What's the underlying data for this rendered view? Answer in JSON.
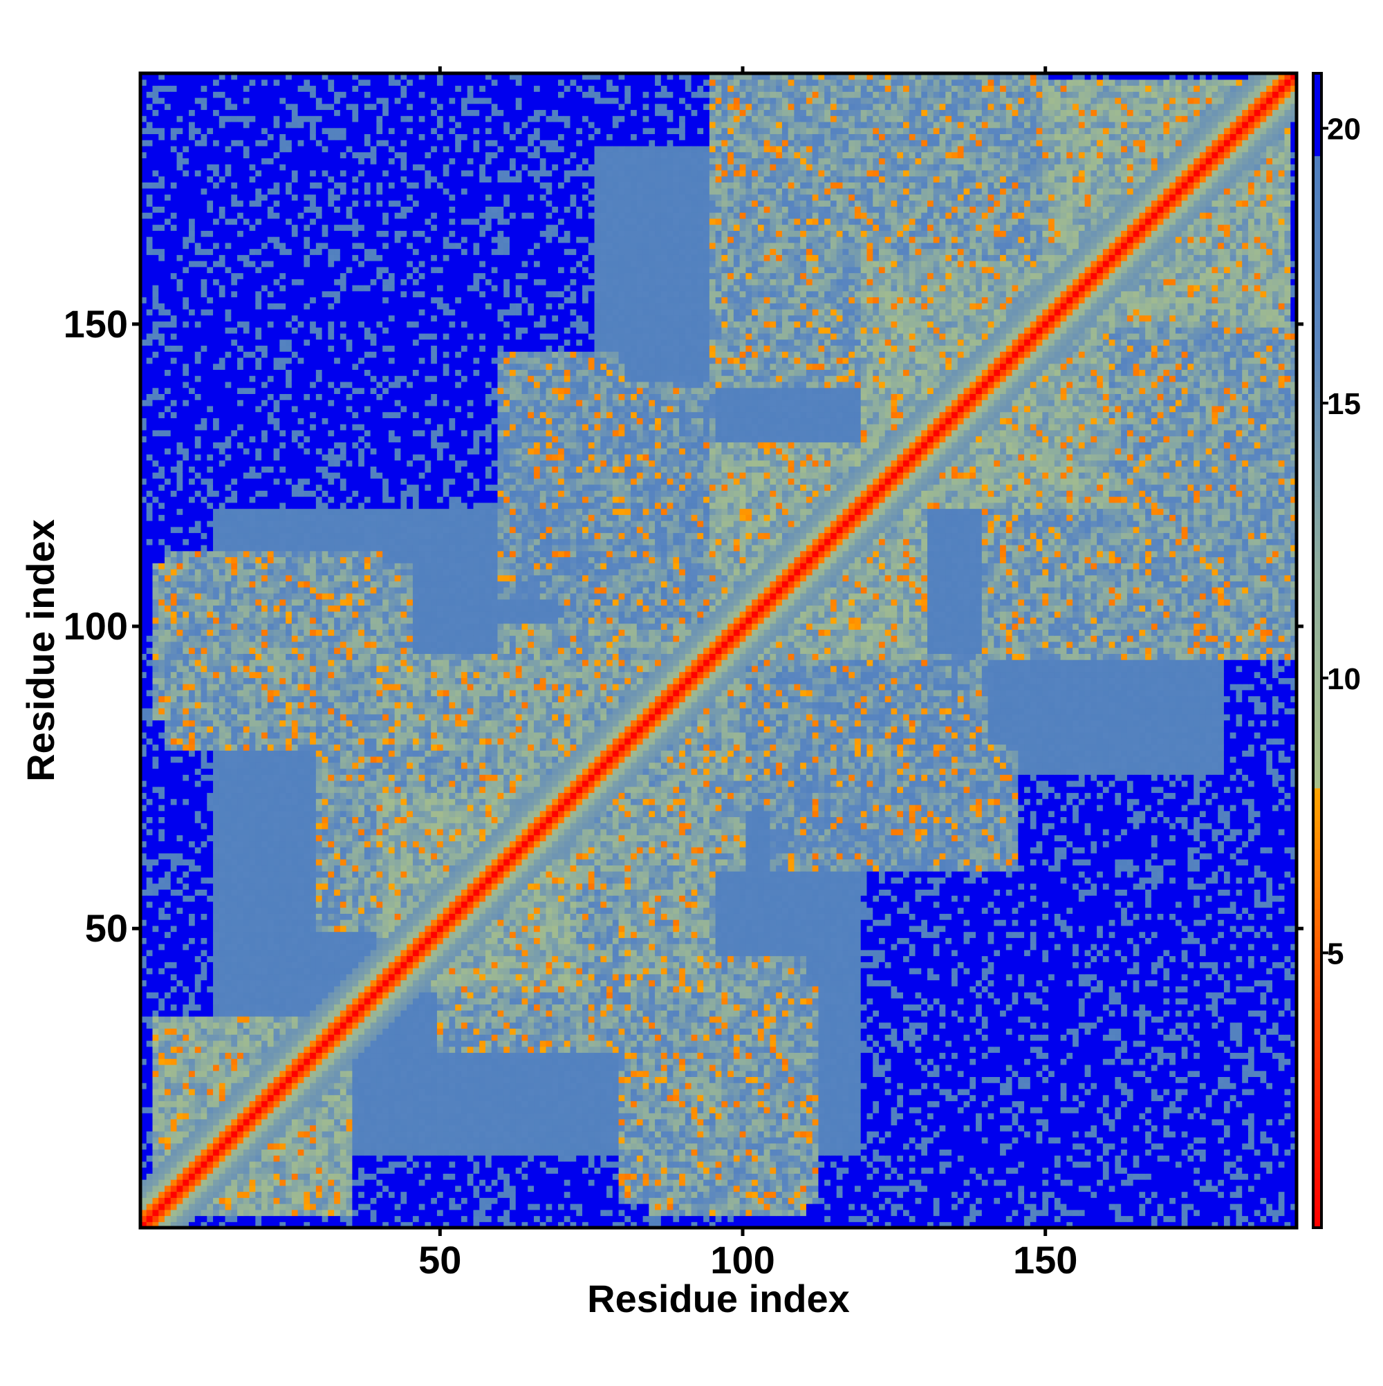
{
  "chart_data": {
    "type": "heatmap",
    "title": "",
    "xlabel": "Residue index",
    "ylabel": "Residue index",
    "xlim": [
      0.5,
      191.5
    ],
    "ylim": [
      0.5,
      191.5
    ],
    "x_ticks": [
      {
        "value": 50,
        "label": "50"
      },
      {
        "value": 100,
        "label": "100"
      },
      {
        "value": 150,
        "label": "150"
      }
    ],
    "y_ticks": [
      {
        "value": 50,
        "label": "50"
      },
      {
        "value": 100,
        "label": "100"
      },
      {
        "value": 150,
        "label": "150"
      }
    ],
    "n_residues": 191,
    "colorbar": {
      "min": 0,
      "max": 21,
      "ticks": [
        {
          "value": 5,
          "label": "5"
        },
        {
          "value": 10,
          "label": "10"
        },
        {
          "value": 15,
          "label": "15"
        },
        {
          "value": 20,
          "label": "20"
        }
      ],
      "stops": [
        {
          "value": 0,
          "color": "#ff0000"
        },
        {
          "value": 4,
          "color": "#ff4400"
        },
        {
          "value": 8,
          "color": "#ffa500"
        },
        {
          "value": 8.01,
          "color": "#a8c08a"
        },
        {
          "value": 12,
          "color": "#8fae9e"
        },
        {
          "value": 16,
          "color": "#5a86c0"
        },
        {
          "value": 19.5,
          "color": "#4f7fbf"
        },
        {
          "value": 19.51,
          "color": "#0000ee"
        },
        {
          "value": 21,
          "color": "#0000ee"
        }
      ]
    },
    "grid": false,
    "legend": "colorbar-right",
    "value_description": "distance map (Å), symmetric about the diagonal",
    "contact_blocks": [
      {
        "x": [
          3,
          35
        ],
        "y": [
          3,
          35
        ],
        "level": 9
      },
      {
        "x": [
          40,
          72
        ],
        "y": [
          40,
          72
        ],
        "level": 9
      },
      {
        "x": [
          60,
          100
        ],
        "y": [
          60,
          100
        ],
        "level": 10
      },
      {
        "x": [
          95,
          130
        ],
        "y": [
          95,
          130
        ],
        "level": 9
      },
      {
        "x": [
          120,
          160
        ],
        "y": [
          120,
          160
        ],
        "level": 9
      },
      {
        "x": [
          150,
          190
        ],
        "y": [
          150,
          190
        ],
        "level": 9
      },
      {
        "x": [
          80,
          112
        ],
        "y": [
          5,
          40
        ],
        "level": 11
      },
      {
        "x": [
          50,
          80
        ],
        "y": [
          30,
          60
        ],
        "level": 11
      },
      {
        "x": [
          80,
          95
        ],
        "y": [
          40,
          60
        ],
        "level": 10
      },
      {
        "x": [
          3,
          45
        ],
        "y": [
          85,
          110
        ],
        "level": 11
      },
      {
        "x": [
          45,
          75
        ],
        "y": [
          80,
          95
        ],
        "level": 11
      },
      {
        "x": [
          30,
          70
        ],
        "y": [
          60,
          75
        ],
        "level": 12
      },
      {
        "x": [
          60,
          80
        ],
        "y": [
          105,
          145
        ],
        "level": 12
      },
      {
        "x": [
          100,
          140
        ],
        "y": [
          70,
          95
        ],
        "level": 12
      },
      {
        "x": [
          100,
          150
        ],
        "y": [
          155,
          191
        ],
        "level": 11
      },
      {
        "x": [
          120,
          150
        ],
        "y": [
          140,
          175
        ],
        "level": 11
      },
      {
        "x": [
          140,
          191
        ],
        "y": [
          95,
          130
        ],
        "level": 11
      },
      {
        "x": [
          140,
          191
        ],
        "y": [
          120,
          150
        ],
        "level": 11
      }
    ],
    "far_blocks": [
      {
        "x": [
          0,
          45
        ],
        "y": [
          150,
          191
        ],
        "level": 20.5
      },
      {
        "x": [
          35,
          70
        ],
        "y": [
          130,
          175
        ],
        "level": 20.5
      },
      {
        "x": [
          120,
          191
        ],
        "y": [
          3,
          60
        ],
        "level": 20.5
      },
      {
        "x": [
          140,
          191
        ],
        "y": [
          40,
          75
        ],
        "level": 20.5
      },
      {
        "x": [
          0,
          12
        ],
        "y": [
          0,
          191
        ],
        "level": 21
      },
      {
        "x": [
          0,
          191
        ],
        "y": [
          180,
          191
        ],
        "level": 21
      },
      {
        "x": [
          180,
          191
        ],
        "y": [
          0,
          191
        ],
        "level": 21
      },
      {
        "x": [
          0,
          191
        ],
        "y": [
          0,
          8
        ],
        "level": 21
      }
    ]
  }
}
